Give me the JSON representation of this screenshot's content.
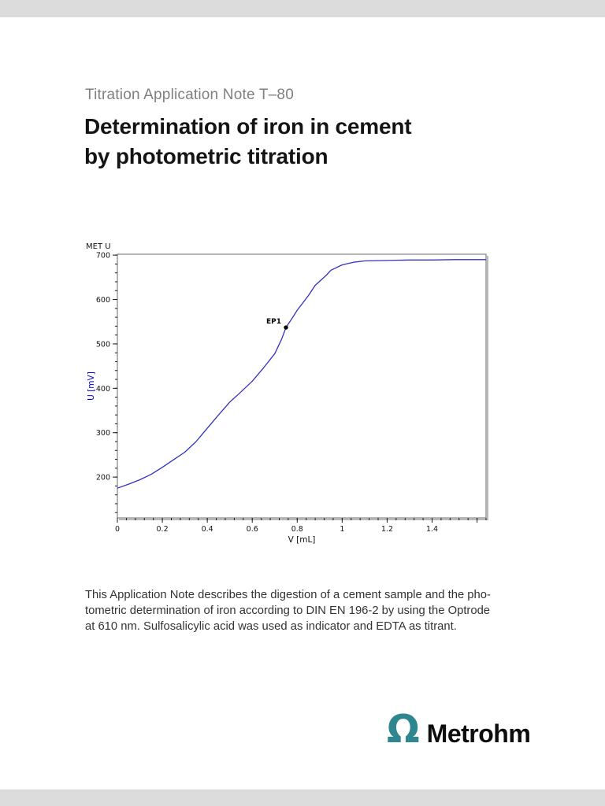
{
  "page": {
    "kicker": "Titration Application Note T–80",
    "title_line1": "Determination of iron in cement",
    "title_line2": "by photometric titration",
    "abstract_lines": [
      "This Application Note describes the digestion of a cement sample and the pho-",
      "tometric determination of iron according to DIN EN 196-2 by using the Optrode",
      "at 610 nm. Sulfosalicylic acid was used as indicator and EDTA as titrant."
    ]
  },
  "logo": {
    "symbol": "Ω",
    "text": "Metrohm",
    "symbol_color": "#2e868e"
  },
  "chart_data": {
    "type": "line",
    "title": "MET U",
    "xlabel": "V [mL]",
    "ylabel": "U [mV]",
    "xlim": [
      0,
      1.64
    ],
    "ylim": [
      108,
      702
    ],
    "grid": false,
    "legend": false,
    "curve_color": "#3232c0",
    "ylabel_color": "#0000cc",
    "frame_color": "#6a6a6a",
    "x_minor_step": 0.04,
    "y_minor_step": 20,
    "x_major_ticks": [
      {
        "v": 0,
        "label": "0"
      },
      {
        "v": 0.2,
        "label": "0.2"
      },
      {
        "v": 0.4,
        "label": "0.4"
      },
      {
        "v": 0.6,
        "label": "0.6"
      },
      {
        "v": 0.8,
        "label": "0.8"
      },
      {
        "v": 1,
        "label": "1"
      },
      {
        "v": 1.2,
        "label": "1.2"
      },
      {
        "v": 1.4,
        "label": "1.4"
      },
      {
        "v": 1.6,
        "label": ""
      }
    ],
    "y_major_ticks": [
      {
        "v": 200,
        "label": "200"
      },
      {
        "v": 300,
        "label": "300"
      },
      {
        "v": 400,
        "label": "400"
      },
      {
        "v": 500,
        "label": "500"
      },
      {
        "v": 600,
        "label": "600"
      },
      {
        "v": 700,
        "label": "700"
      }
    ],
    "series": [
      {
        "name": "U",
        "x": [
          0,
          0.05,
          0.1,
          0.15,
          0.2,
          0.25,
          0.3,
          0.35,
          0.4,
          0.45,
          0.5,
          0.55,
          0.6,
          0.65,
          0.7,
          0.73,
          0.75,
          0.78,
          0.8,
          0.85,
          0.88,
          0.9,
          0.93,
          0.95,
          1.0,
          1.05,
          1.1,
          1.2,
          1.3,
          1.4,
          1.5,
          1.64
        ],
        "y": [
          175,
          184,
          194,
          206,
          222,
          239,
          256,
          280,
          310,
          340,
          369,
          392,
          416,
          446,
          478,
          510,
          537,
          560,
          576,
          609,
          632,
          641,
          655,
          666,
          678,
          684,
          687,
          688,
          689,
          689,
          690,
          690
        ]
      }
    ],
    "endpoint": {
      "label": "EP1",
      "x": 0.75,
      "y": 537
    }
  }
}
